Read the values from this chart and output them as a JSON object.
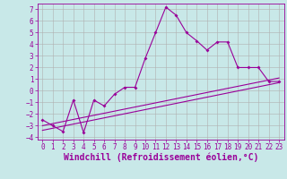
{
  "xlabel": "Windchill (Refroidissement éolien,°C)",
  "xlim": [
    -0.5,
    23.5
  ],
  "ylim": [
    -4.2,
    7.5
  ],
  "yticks": [
    -4,
    -3,
    -2,
    -1,
    0,
    1,
    2,
    3,
    4,
    5,
    6,
    7
  ],
  "xticks": [
    0,
    1,
    2,
    3,
    4,
    5,
    6,
    7,
    8,
    9,
    10,
    11,
    12,
    13,
    14,
    15,
    16,
    17,
    18,
    19,
    20,
    21,
    22,
    23
  ],
  "main_x": [
    0,
    1,
    2,
    3,
    4,
    5,
    6,
    7,
    8,
    9,
    10,
    11,
    12,
    13,
    14,
    15,
    16,
    17,
    18,
    19,
    20,
    21,
    22,
    23
  ],
  "main_y": [
    -2.5,
    -3.0,
    -3.5,
    -0.8,
    -3.6,
    -0.8,
    -1.3,
    -0.3,
    0.3,
    0.3,
    2.8,
    5.0,
    7.2,
    6.5,
    5.0,
    4.3,
    3.5,
    4.2,
    4.2,
    2.0,
    2.0,
    2.0,
    0.8,
    0.8
  ],
  "line1_x": [
    0,
    23
  ],
  "line1_y": [
    -3.0,
    1.1
  ],
  "line2_x": [
    0,
    23
  ],
  "line2_y": [
    -3.4,
    0.7
  ],
  "color": "#990099",
  "bg_color": "#c8e8e8",
  "grid_color": "#b0b0b0",
  "tick_fontsize": 5.5,
  "xlabel_fontsize": 7.0
}
